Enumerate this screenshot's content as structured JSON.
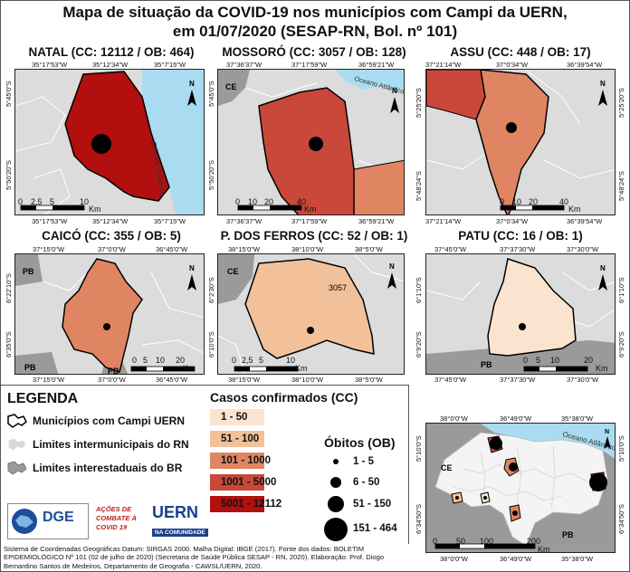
{
  "title_line1": "Mapa de situação da COVID-19 nos municípios com Campi da UERN,",
  "title_line2": "em 01/07/2020 (SESAP-RN, Bol. nº 101)",
  "panels": [
    {
      "title": "NATAL (CC: 12112 / OB: 464)",
      "top_coords": [
        "35°17'53\"W",
        "35°12'34\"W",
        "35°7'15\"W"
      ],
      "bottom_coords": [
        "35°17'53\"W",
        "35°12'34\"W",
        "35°7'15\"W"
      ],
      "left_coords": [
        "5°45'0\"S",
        "5°50'20\"S"
      ],
      "right_coords": [
        "5°45'0\"S",
        "5°50'20\"S"
      ],
      "label": "Oceano Atlântico",
      "scale": [
        "0",
        "2,5",
        "5",
        "10"
      ],
      "scale_unit": "Km"
    },
    {
      "title": "MOSSORÓ (CC: 3057 / OB: 128)",
      "top_coords": [
        "37°36'37\"W",
        "37°17'59\"W",
        "36°59'21\"W"
      ],
      "bottom_coords": [
        "37°36'37\"W",
        "37°17'59\"W",
        "36°59'21\"W"
      ],
      "left_coords": [
        "5°45'0\"S",
        "5°50'20\"S"
      ],
      "right_coords": [
        "5°45'0\"S",
        "5°50'20\"S"
      ],
      "label": "Oceano Atlântico",
      "state_label": "CE",
      "scale": [
        "0",
        "10",
        "20",
        "40"
      ],
      "scale_unit": "Km"
    },
    {
      "title": "ASSU (CC: 448 / OB: 17)",
      "top_coords": [
        "37°21'14\"W",
        "37°0'34\"W",
        "36°39'54\"W"
      ],
      "bottom_coords": [
        "37°21'14\"W",
        "37°0'34\"W",
        "36°39'54\"W"
      ],
      "left_coords": [
        "5°25'20\"S",
        "5°48'24\"S"
      ],
      "right_coords": [
        "5°25'20\"S",
        "5°48'24\"S"
      ],
      "mid_coord": "5°16'0\"S",
      "scale": [
        "0",
        "10",
        "20",
        "40"
      ],
      "scale_unit": "Km"
    },
    {
      "title": "CAICÓ (CC: 355 / OB: 5)",
      "top_coords": [
        "37°15'0\"W",
        "37°0'0\"W",
        "36°45'0\"W"
      ],
      "bottom_coords": [
        "37°15'0\"W",
        "37°0'0\"W",
        "36°45'0\"W"
      ],
      "left_coords": [
        "6°22'10\"S",
        "6°35'0\"S"
      ],
      "right_coords": [
        "6°22'10\"S",
        "6°35'0\"S"
      ],
      "state_labels": [
        "PB",
        "PB",
        "PB"
      ],
      "scale": [
        "0",
        "5",
        "10",
        "20"
      ],
      "scale_unit": "Km"
    },
    {
      "title": "P. DOS FERROS (CC: 52 / OB: 1)",
      "top_coords": [
        "38°15'0\"W",
        "38°10'0\"W",
        "38°5'0\"W"
      ],
      "bottom_coords": [
        "38°15'0\"W",
        "38°10'0\"W",
        "38°5'0\"W"
      ],
      "left_coords": [
        "6°2'30\"S",
        "6°10'0\"S"
      ],
      "right_coords": [
        "6°2'30\"S",
        "6°10'0\"S"
      ],
      "state_label": "CE",
      "mun_label": "3057",
      "scale": [
        "0",
        "2,5",
        "5",
        "10"
      ],
      "scale_unit": "Km"
    },
    {
      "title": "PATU (CC: 16 / OB: 1)",
      "top_coords": [
        "37°45'0\"W",
        "37°37'30\"W",
        "37°30'0\"W"
      ],
      "bottom_coords": [
        "37°45'0\"W",
        "37°37'30\"W",
        "37°30'0\"W"
      ],
      "left_coords": [
        "6°1'10\"S",
        "6°9'20\"S"
      ],
      "right_coords": [
        "6°1'10\"S",
        "6°9'20\"S"
      ],
      "state_label": "PB",
      "scale": [
        "0",
        "5",
        "10",
        "20"
      ],
      "scale_unit": "Km"
    }
  ],
  "north_label": "N",
  "legend": {
    "title": "LEGENDA",
    "items": [
      "Municípios com Campi UERN",
      "Limites intermunicipais do RN",
      "Limites interestaduais do BR"
    ],
    "cc_title": "Casos confirmados (CC)",
    "cc_classes": [
      {
        "label": "1 - 50",
        "color": "#fbe4cf"
      },
      {
        "label": "51 - 100",
        "color": "#f2c19a"
      },
      {
        "label": "101 - 1000",
        "color": "#e08562"
      },
      {
        "label": "1001 - 5000",
        "color": "#c9483a"
      },
      {
        "label": "5001 - 12112",
        "color": "#b30f0f"
      }
    ],
    "ob_title": "Óbitos (OB)",
    "ob_classes": [
      "1 - 5",
      "6 - 50",
      "51 - 150",
      "151 - 464"
    ]
  },
  "logos": {
    "dge": "DGE",
    "covid": "AÇÕES DE COMBATE À COVID 19",
    "uern": "UERN",
    "uern_sub": "NA COMUNIDADE"
  },
  "overview": {
    "top_coords": [
      "38°0'0\"W",
      "36°49'0\"W",
      "35°38'0\"W"
    ],
    "bottom_coords": [
      "38°0'0\"W",
      "36°49'0\"W",
      "35°38'0\"W"
    ],
    "left_coords": [
      "5°10'0\"S",
      "6°34'50\"S"
    ],
    "right_coords": [
      "5°10'0\"S",
      "6°34'50\"S"
    ],
    "ocean_label": "Oceano Atlântico",
    "ce": "CE",
    "pb": "PB",
    "scale": [
      "0",
      "50",
      "100",
      "200"
    ],
    "scale_unit": "Km"
  },
  "footer": "Sistema de Coordenadas Geográficas Datum: SIRGAS 2000. Malha Digital: IBGE (2017). Fonte dos dados: BOLETIM EPIDEMIOLÓGICO Nº 101 (02 de julho de 2020) (Secretaria de Saúde Pública SESAP - RN, 2020). Elaboração: Prof. Diogo Bernardino Santos de Medeiros, Departamento de Geografia - CAWSL/UERN, 2020.",
  "colors": {
    "ocean": "#a9dcf0",
    "neighbor": "#d9d9d9",
    "state": "#9a9a9a"
  }
}
